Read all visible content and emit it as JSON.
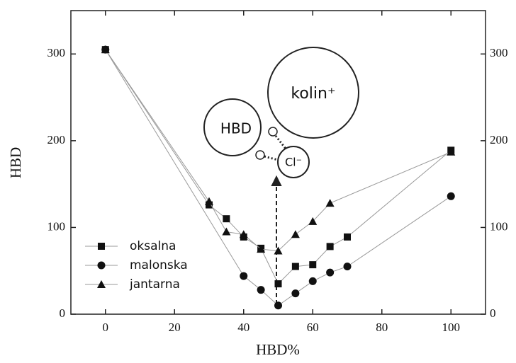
{
  "chart_data": {
    "type": "line",
    "xlabel": "HBD%",
    "ylabel": "HBD",
    "xlim": [
      -10,
      110
    ],
    "xticks": [
      0,
      20,
      40,
      60,
      80,
      100
    ],
    "ylim": [
      0,
      350
    ],
    "yticks": [
      0,
      100,
      200,
      300
    ],
    "y2lim": [
      0,
      350
    ],
    "y2ticks": [
      0,
      100,
      200,
      300
    ],
    "line_color": "#9a9a9a",
    "legend": "lower-left",
    "annotations": [
      "HBD",
      "kolin⁺",
      "Cl⁻"
    ],
    "series": [
      {
        "name": "oksalna",
        "color": "#111111",
        "marker": "square",
        "x": [
          0,
          30,
          35,
          40,
          45,
          50,
          55,
          60,
          65,
          70,
          100
        ],
        "values": [
          305,
          126,
          110,
          89,
          76,
          35,
          55,
          57,
          78,
          89,
          189
        ]
      },
      {
        "name": "malonska",
        "color": "#111111",
        "marker": "circle",
        "x": [
          0,
          40,
          45,
          50,
          55,
          60,
          65,
          70,
          100
        ],
        "values": [
          305,
          44,
          28,
          10,
          24,
          38,
          48,
          55,
          136
        ]
      },
      {
        "name": "jantarna",
        "color": "#111111",
        "marker": "triangle",
        "x": [
          0,
          30,
          35,
          40,
          45,
          50,
          55,
          60,
          65,
          100
        ],
        "values": [
          305,
          130,
          95,
          92,
          75,
          73,
          92,
          107,
          128,
          187
        ]
      }
    ]
  }
}
